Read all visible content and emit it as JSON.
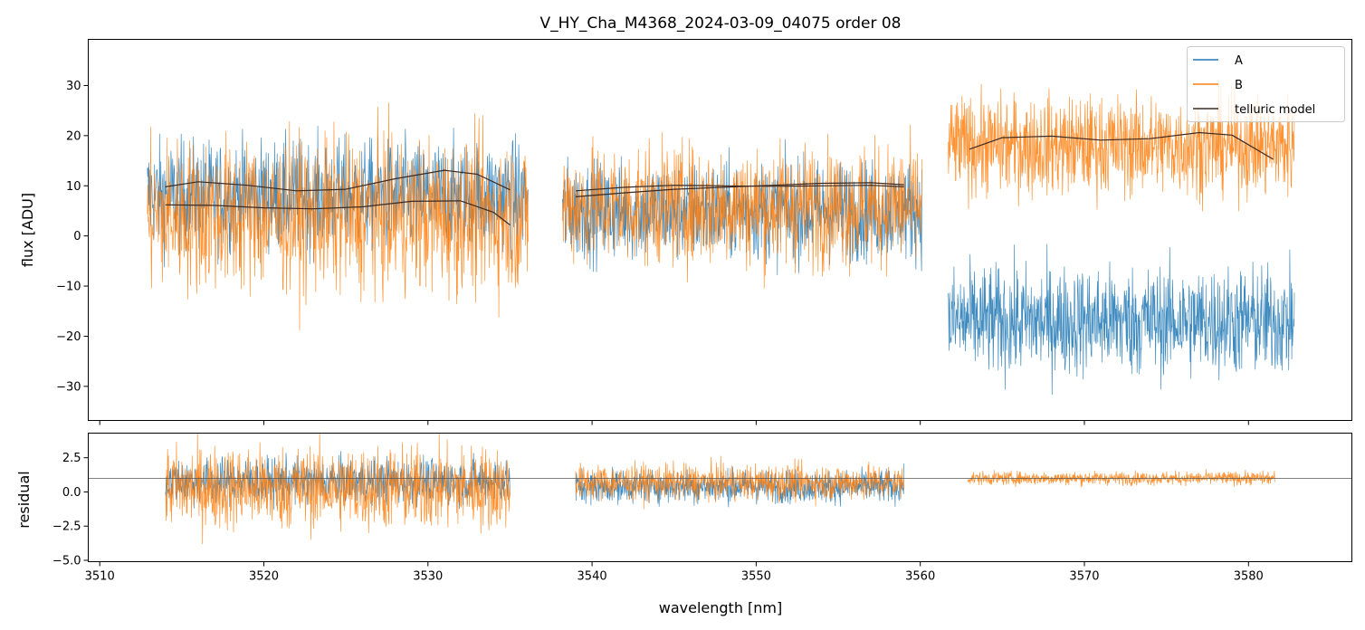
{
  "chart_data": {
    "type": "line",
    "title": "V_HY_Cha_M4368_2024-03-09_04075  order 08",
    "xlabel": "wavelength [nm]",
    "xlim": [
      3509.3,
      3586.3
    ],
    "xticks": [
      3510,
      3520,
      3530,
      3540,
      3550,
      3560,
      3570,
      3580
    ],
    "colors": {
      "A": "#1f77b4",
      "B": "#ff7f0e",
      "model": "#3a2a22",
      "refline": "#555555"
    },
    "panels": [
      {
        "name": "flux",
        "ylabel": "flux [ADU]",
        "ylim": [
          -36.8,
          39.2
        ],
        "yticks": [
          -30,
          -20,
          -10,
          0,
          10,
          20,
          30
        ],
        "segments": [
          {
            "x_range": [
              3512.9,
              3536.1
            ],
            "A_mean": 8.0,
            "A_spread": 10,
            "B_mean": 4.0,
            "B_spread": 14
          },
          {
            "x_range": [
              3538.2,
              3560.1
            ],
            "A_mean": 5.0,
            "A_spread": 9,
            "B_mean": 6.0,
            "B_spread": 11
          },
          {
            "x_range": [
              3561.7,
              3582.8
            ],
            "A_mean": -17.0,
            "A_spread": 10,
            "B_mean": 18.0,
            "B_spread": 9
          }
        ],
        "telluric_model": [
          {
            "x": [
              3514,
              3516,
              3519,
              3522,
              3525,
              3528,
              3531,
              3533,
              3535
            ],
            "y": [
              9.8,
              10.8,
              10.1,
              9.0,
              9.3,
              11.4,
              13.1,
              12.3,
              9.2
            ]
          },
          {
            "x": [
              3514,
              3517,
              3520,
              3523,
              3526,
              3529,
              3532,
              3534,
              3535
            ],
            "y": [
              6.2,
              6.1,
              5.6,
              5.4,
              5.8,
              6.9,
              7.0,
              4.7,
              2.2
            ]
          },
          {
            "x": [
              3539,
              3542,
              3545,
              3548,
              3551,
              3554,
              3557,
              3559
            ],
            "y": [
              9.0,
              9.7,
              10.1,
              10.0,
              9.9,
              10.0,
              10.1,
              9.8
            ]
          },
          {
            "x": [
              3539,
              3542,
              3545,
              3548,
              3551,
              3554,
              3557,
              3559
            ],
            "y": [
              7.8,
              8.6,
              9.3,
              9.7,
              10.1,
              10.5,
              10.6,
              10.2
            ]
          },
          {
            "x": [
              3563,
              3565,
              3568,
              3571,
              3574,
              3577,
              3579,
              3581.5
            ],
            "y": [
              17.3,
              19.6,
              19.9,
              19.1,
              19.4,
              20.6,
              20.1,
              15.3
            ]
          }
        ]
      },
      {
        "name": "residual",
        "ylabel": "residual",
        "ylim": [
          -5.1,
          4.3
        ],
        "yticks": [
          -5.0,
          -2.5,
          0.0,
          2.5
        ],
        "ytick_labels": [
          "−5.0",
          "−2.5",
          "0.0",
          "2.5"
        ],
        "reference_line_y": 1.0,
        "segments": [
          {
            "x_range": [
              3514.0,
              3535.0
            ],
            "A_mean": 0.8,
            "A_spread": 1.5,
            "B_mean": 0.3,
            "B_spread": 2.8
          },
          {
            "x_range": [
              3539.0,
              3559.0
            ],
            "A_mean": 0.4,
            "A_spread": 1.1,
            "B_mean": 0.7,
            "B_spread": 1.2
          },
          {
            "x_range": [
              3562.9,
              3581.6
            ],
            "B_mean": 1.0,
            "B_spread": 0.45
          }
        ]
      }
    ],
    "legend": {
      "position": "top-right",
      "entries": [
        {
          "label": "A",
          "series": "A"
        },
        {
          "label": "B",
          "series": "B"
        },
        {
          "label": "telluric model",
          "series": "model"
        }
      ]
    }
  }
}
